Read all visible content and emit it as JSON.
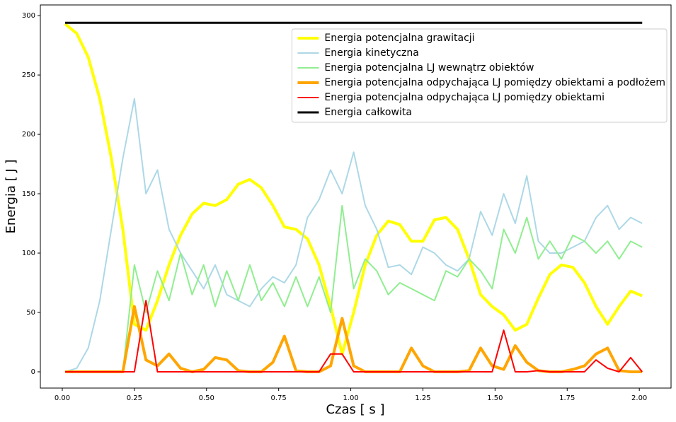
{
  "chart_data": {
    "type": "line",
    "xlabel": "Czas [ s ]",
    "ylabel": "Energia [ J ]",
    "xlim": [
      -0.076,
      2.11
    ],
    "ylim": [
      -13.7,
      309
    ],
    "xticks": [
      {
        "value": 0,
        "label": "0.00"
      },
      0.25,
      {
        "value": 0.5,
        "label": "0.50"
      },
      0.75,
      {
        "value": 1,
        "label": "1.00"
      },
      1.25,
      {
        "value": 1.5,
        "label": "1.50"
      },
      1.75,
      {
        "value": 2,
        "label": "2.00"
      }
    ],
    "yticks": [
      0,
      50,
      100,
      150,
      200,
      250,
      300
    ],
    "legend": "upper right",
    "x": [
      0.01,
      0.05,
      0.09,
      0.13,
      0.17,
      0.21,
      0.25,
      0.29,
      0.33,
      0.37,
      0.41,
      0.45,
      0.49,
      0.53,
      0.57,
      0.61,
      0.65,
      0.69,
      0.73,
      0.77,
      0.81,
      0.85,
      0.89,
      0.93,
      0.97,
      1.01,
      1.05,
      1.09,
      1.13,
      1.17,
      1.21,
      1.25,
      1.29,
      1.33,
      1.37,
      1.41,
      1.45,
      1.49,
      1.53,
      1.57,
      1.61,
      1.65,
      1.69,
      1.73,
      1.77,
      1.81,
      1.85,
      1.89,
      1.93,
      1.97,
      2.01
    ],
    "series": [
      {
        "name": "Energia potencjalna grawitacji",
        "color": "#ffff00",
        "width": 4,
        "values": [
          293,
          285,
          265,
          230,
          180,
          120,
          40,
          35,
          60,
          90,
          115,
          133,
          142,
          140,
          145,
          158,
          162,
          155,
          140,
          122,
          120,
          112,
          90,
          55,
          15,
          50,
          90,
          115,
          127,
          124,
          110,
          110,
          128,
          130,
          120,
          95,
          65,
          55,
          48,
          35,
          40,
          62,
          82,
          90,
          88,
          75,
          55,
          40,
          55,
          68,
          64
        ]
      },
      {
        "name": "Energia kinetyczna",
        "color": "#add8e6",
        "width": 2,
        "values": [
          0,
          3,
          20,
          60,
          120,
          180,
          230,
          150,
          170,
          120,
          100,
          85,
          70,
          90,
          65,
          60,
          55,
          70,
          80,
          75,
          90,
          130,
          145,
          170,
          150,
          185,
          140,
          120,
          88,
          90,
          82,
          105,
          100,
          90,
          85,
          95,
          135,
          115,
          150,
          125,
          165,
          110,
          100,
          100,
          105,
          110,
          130,
          140,
          120,
          130,
          125
        ]
      },
      {
        "name": "Energia potencjalna LJ wewnątrz obiektów",
        "color": "#90ee90",
        "width": 2,
        "values": [
          0,
          0,
          0,
          0,
          0,
          0,
          90,
          50,
          85,
          60,
          100,
          65,
          90,
          55,
          85,
          60,
          90,
          60,
          75,
          55,
          80,
          55,
          80,
          50,
          140,
          70,
          95,
          85,
          65,
          75,
          70,
          65,
          60,
          85,
          80,
          95,
          85,
          70,
          120,
          100,
          130,
          95,
          110,
          95,
          115,
          110,
          100,
          110,
          95,
          110,
          105
        ]
      },
      {
        "name": "Energia potencjalna odpychająca LJ pomiędzy obiektami a podłożem",
        "color": "#ffa500",
        "width": 4,
        "values": [
          0,
          0,
          0,
          0,
          0,
          0,
          55,
          10,
          5,
          15,
          3,
          0,
          2,
          12,
          10,
          1,
          0,
          0,
          8,
          30,
          1,
          0,
          0,
          5,
          45,
          5,
          0,
          0,
          0,
          0,
          20,
          5,
          0,
          0,
          0,
          1,
          20,
          5,
          2,
          22,
          8,
          1,
          0,
          0,
          2,
          5,
          15,
          20,
          1,
          0,
          0
        ]
      },
      {
        "name": "Energia potencjalna odpychająca LJ pomiędzy obiektami",
        "color": "#ff0000",
        "width": 2,
        "values": [
          0,
          0,
          0,
          0,
          0,
          0,
          0,
          60,
          0,
          0,
          0,
          0,
          0,
          0,
          0,
          0,
          0,
          0,
          0,
          0,
          0,
          0,
          0,
          15,
          15,
          0,
          0,
          0,
          0,
          0,
          0,
          0,
          0,
          0,
          0,
          0,
          0,
          0,
          35,
          0,
          0,
          1,
          0,
          0,
          0,
          0,
          10,
          3,
          0,
          12,
          0
        ]
      },
      {
        "name": "Energia całkowita",
        "color": "#000000",
        "width": 3,
        "values": [
          294,
          294,
          294,
          294,
          294,
          294,
          294,
          294,
          294,
          294,
          294,
          294,
          294,
          294,
          294,
          294,
          294,
          294,
          294,
          294,
          294,
          294,
          294,
          294,
          294,
          294,
          294,
          294,
          294,
          294,
          294,
          294,
          294,
          294,
          294,
          294,
          294,
          294,
          294,
          294,
          294,
          294,
          294,
          294,
          294,
          294,
          294,
          294,
          294,
          294,
          294
        ]
      }
    ]
  }
}
